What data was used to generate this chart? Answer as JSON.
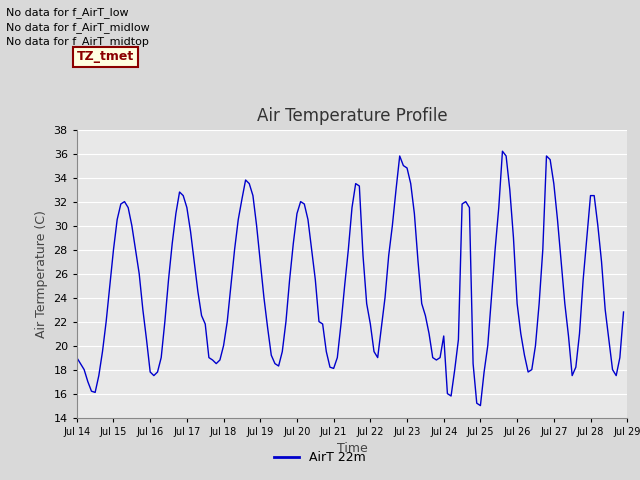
{
  "title": "Air Temperature Profile",
  "xlabel": "Time",
  "ylabel": "Air Termperature (C)",
  "legend_label": "AirT 22m",
  "line_color": "#0000CC",
  "fig_facecolor": "#D9D9D9",
  "plot_facecolor": "#E8E8E8",
  "ylim": [
    14,
    38
  ],
  "yticks": [
    14,
    16,
    18,
    20,
    22,
    24,
    26,
    28,
    30,
    32,
    34,
    36,
    38
  ],
  "annotations": [
    "No data for f_AirT_low",
    "No data for f_AirT_midlow",
    "No data for f_AirT_midtop"
  ],
  "tz_label": "TZ_tmet",
  "xtick_days": [
    14,
    15,
    16,
    17,
    18,
    19,
    20,
    21,
    22,
    23,
    24,
    25,
    26,
    27,
    28,
    29
  ],
  "data_points": [
    [
      14.0,
      19.0
    ],
    [
      14.1,
      18.5
    ],
    [
      14.2,
      18.0
    ],
    [
      14.3,
      17.0
    ],
    [
      14.4,
      16.2
    ],
    [
      14.5,
      16.1
    ],
    [
      14.6,
      17.5
    ],
    [
      14.7,
      19.5
    ],
    [
      14.8,
      22.0
    ],
    [
      14.9,
      25.0
    ],
    [
      15.0,
      28.0
    ],
    [
      15.1,
      30.5
    ],
    [
      15.2,
      31.8
    ],
    [
      15.3,
      32.0
    ],
    [
      15.4,
      31.5
    ],
    [
      15.5,
      30.0
    ],
    [
      15.6,
      28.0
    ],
    [
      15.7,
      26.0
    ],
    [
      15.8,
      23.0
    ],
    [
      15.9,
      20.5
    ],
    [
      16.0,
      17.8
    ],
    [
      16.1,
      17.5
    ],
    [
      16.2,
      17.8
    ],
    [
      16.3,
      19.0
    ],
    [
      16.4,
      22.0
    ],
    [
      16.5,
      25.5
    ],
    [
      16.6,
      28.5
    ],
    [
      16.7,
      31.0
    ],
    [
      16.8,
      32.8
    ],
    [
      16.9,
      32.5
    ],
    [
      17.0,
      31.5
    ],
    [
      17.1,
      29.5
    ],
    [
      17.2,
      27.0
    ],
    [
      17.3,
      24.5
    ],
    [
      17.4,
      22.5
    ],
    [
      17.5,
      21.8
    ],
    [
      17.6,
      19.0
    ],
    [
      17.7,
      18.8
    ],
    [
      17.8,
      18.5
    ],
    [
      17.9,
      18.8
    ],
    [
      18.0,
      20.0
    ],
    [
      18.1,
      22.0
    ],
    [
      18.2,
      25.0
    ],
    [
      18.3,
      28.0
    ],
    [
      18.4,
      30.5
    ],
    [
      18.5,
      32.2
    ],
    [
      18.6,
      33.8
    ],
    [
      18.7,
      33.5
    ],
    [
      18.8,
      32.5
    ],
    [
      18.9,
      30.0
    ],
    [
      19.0,
      27.0
    ],
    [
      19.1,
      24.0
    ],
    [
      19.2,
      21.5
    ],
    [
      19.3,
      19.2
    ],
    [
      19.4,
      18.5
    ],
    [
      19.5,
      18.3
    ],
    [
      19.6,
      19.5
    ],
    [
      19.7,
      22.0
    ],
    [
      19.8,
      25.5
    ],
    [
      19.9,
      28.5
    ],
    [
      20.0,
      31.0
    ],
    [
      20.1,
      32.0
    ],
    [
      20.2,
      31.8
    ],
    [
      20.3,
      30.5
    ],
    [
      20.4,
      28.0
    ],
    [
      20.5,
      25.5
    ],
    [
      20.6,
      22.0
    ],
    [
      20.7,
      21.8
    ],
    [
      20.8,
      19.5
    ],
    [
      20.9,
      18.2
    ],
    [
      21.0,
      18.1
    ],
    [
      21.1,
      19.0
    ],
    [
      21.2,
      21.8
    ],
    [
      21.3,
      25.0
    ],
    [
      21.4,
      28.0
    ],
    [
      21.5,
      31.5
    ],
    [
      21.6,
      33.5
    ],
    [
      21.7,
      33.3
    ],
    [
      21.8,
      27.5
    ],
    [
      21.9,
      23.5
    ],
    [
      22.0,
      21.8
    ],
    [
      22.1,
      19.5
    ],
    [
      22.2,
      19.0
    ],
    [
      22.3,
      21.5
    ],
    [
      22.4,
      24.0
    ],
    [
      22.5,
      27.5
    ],
    [
      22.6,
      30.0
    ],
    [
      22.7,
      33.0
    ],
    [
      22.8,
      35.8
    ],
    [
      22.9,
      35.0
    ],
    [
      23.0,
      34.8
    ],
    [
      23.1,
      33.5
    ],
    [
      23.2,
      31.0
    ],
    [
      23.3,
      27.0
    ],
    [
      23.4,
      23.5
    ],
    [
      23.5,
      22.5
    ],
    [
      23.6,
      21.0
    ],
    [
      23.7,
      19.0
    ],
    [
      23.8,
      18.8
    ],
    [
      23.9,
      19.0
    ],
    [
      24.0,
      20.8
    ],
    [
      24.1,
      16.0
    ],
    [
      24.2,
      15.8
    ],
    [
      24.3,
      18.0
    ],
    [
      24.4,
      20.5
    ],
    [
      24.5,
      31.8
    ],
    [
      24.6,
      32.0
    ],
    [
      24.7,
      31.5
    ],
    [
      24.8,
      18.5
    ],
    [
      24.9,
      15.2
    ],
    [
      25.0,
      15.0
    ],
    [
      25.1,
      17.8
    ],
    [
      25.2,
      20.0
    ],
    [
      25.3,
      24.0
    ],
    [
      25.4,
      28.0
    ],
    [
      25.5,
      31.5
    ],
    [
      25.6,
      36.2
    ],
    [
      25.7,
      35.8
    ],
    [
      25.8,
      33.0
    ],
    [
      25.9,
      29.0
    ],
    [
      26.0,
      23.5
    ],
    [
      26.1,
      21.0
    ],
    [
      26.2,
      19.2
    ],
    [
      26.3,
      17.8
    ],
    [
      26.4,
      18.0
    ],
    [
      26.5,
      20.0
    ],
    [
      26.6,
      23.5
    ],
    [
      26.7,
      28.0
    ],
    [
      26.8,
      35.8
    ],
    [
      26.9,
      35.5
    ],
    [
      27.0,
      33.5
    ],
    [
      27.1,
      30.5
    ],
    [
      27.2,
      27.0
    ],
    [
      27.3,
      23.5
    ],
    [
      27.4,
      20.8
    ],
    [
      27.5,
      17.5
    ],
    [
      27.6,
      18.2
    ],
    [
      27.7,
      21.0
    ],
    [
      27.8,
      25.5
    ],
    [
      27.9,
      29.0
    ],
    [
      28.0,
      32.5
    ],
    [
      28.1,
      32.5
    ],
    [
      28.2,
      30.0
    ],
    [
      28.3,
      27.0
    ],
    [
      28.4,
      23.0
    ],
    [
      28.5,
      20.5
    ],
    [
      28.6,
      18.0
    ],
    [
      28.7,
      17.5
    ],
    [
      28.8,
      19.0
    ],
    [
      28.9,
      22.8
    ]
  ]
}
